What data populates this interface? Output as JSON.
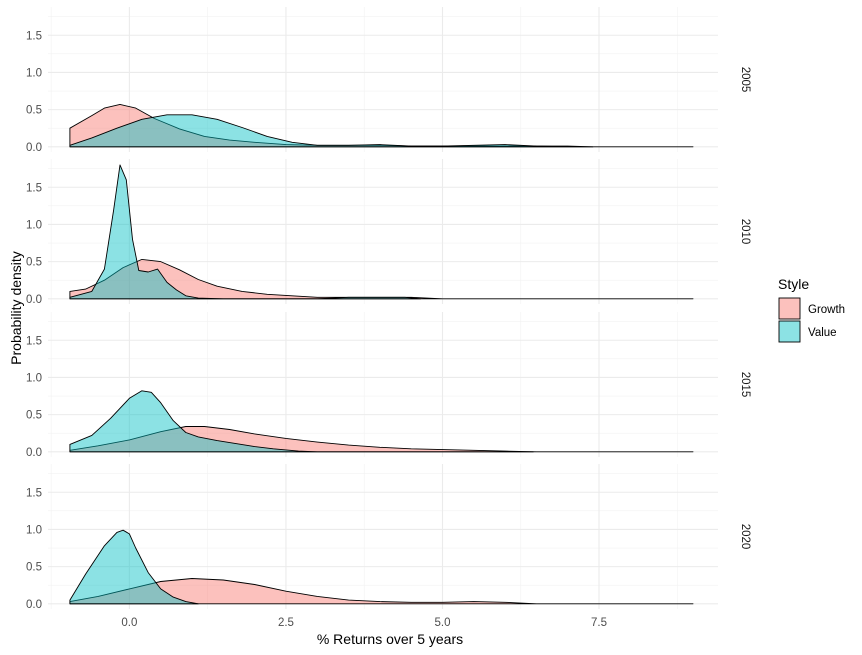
{
  "chart_data": {
    "type": "area",
    "subtype": "faceted density",
    "xlabel": "% Returns over 5 years",
    "ylabel": "Probability density",
    "xlim": [
      -1.3,
      9.4
    ],
    "ylim": [
      -0.07,
      1.88
    ],
    "x_ticks": [
      0.0,
      2.5,
      5.0,
      7.5
    ],
    "x_tick_labels": [
      "0.0",
      "2.5",
      "5.0",
      "7.5"
    ],
    "y_ticks": [
      0.0,
      0.5,
      1.0,
      1.5
    ],
    "y_tick_labels": [
      "0.0",
      "0.5",
      "1.0",
      "1.5"
    ],
    "grid": true,
    "legend": {
      "title": "Style",
      "position": "right",
      "entries": [
        {
          "name": "Growth",
          "color": "#F8766D"
        },
        {
          "name": "Value",
          "color": "#00BFC4"
        }
      ]
    },
    "fill_opacity": 0.45,
    "panels": [
      {
        "label": "2005",
        "series": [
          {
            "name": "Growth",
            "x": [
              -0.95,
              -0.6,
              -0.4,
              -0.15,
              0.1,
              0.4,
              0.8,
              1.2,
              1.6,
              2.0,
              2.5,
              3.0,
              3.5,
              4.0,
              4.5,
              5.0,
              5.5,
              6.0,
              6.5,
              7.0,
              7.4
            ],
            "y": [
              0.25,
              0.42,
              0.52,
              0.57,
              0.52,
              0.38,
              0.24,
              0.14,
              0.09,
              0.06,
              0.03,
              0.02,
              0.02,
              0.02,
              0.01,
              0.01,
              0.01,
              0.01,
              0.01,
              0.01,
              0.0
            ]
          },
          {
            "name": "Value",
            "x": [
              -0.95,
              -0.6,
              -0.2,
              0.2,
              0.6,
              1.0,
              1.4,
              1.8,
              2.2,
              2.6,
              3.0,
              3.5,
              4.0,
              4.5,
              5.0,
              5.5,
              6.0,
              6.5,
              7.0,
              7.5,
              8.0,
              8.5,
              9.0
            ],
            "y": [
              0.02,
              0.12,
              0.25,
              0.37,
              0.43,
              0.43,
              0.37,
              0.26,
              0.14,
              0.06,
              0.02,
              0.02,
              0.03,
              0.01,
              0.01,
              0.02,
              0.03,
              0.01,
              0.0,
              0.0,
              0.0,
              0.0,
              0.0
            ]
          }
        ]
      },
      {
        "label": "2010",
        "series": [
          {
            "name": "Growth",
            "x": [
              -0.95,
              -0.7,
              -0.4,
              -0.1,
              0.2,
              0.5,
              0.8,
              1.1,
              1.4,
              1.8,
              2.2,
              2.6,
              3.0,
              3.5,
              4.0,
              4.5,
              5.0,
              5.5,
              6.0,
              6.5,
              7.0,
              7.5,
              8.0,
              8.5,
              9.0
            ],
            "y": [
              0.1,
              0.13,
              0.25,
              0.42,
              0.53,
              0.5,
              0.39,
              0.26,
              0.17,
              0.1,
              0.06,
              0.04,
              0.02,
              0.02,
              0.02,
              0.02,
              0.0,
              0.0,
              0.0,
              0.0,
              0.0,
              0.0,
              0.0,
              0.0,
              0.0
            ]
          },
          {
            "name": "Value",
            "x": [
              -0.95,
              -0.6,
              -0.4,
              -0.25,
              -0.15,
              -0.05,
              0.05,
              0.15,
              0.3,
              0.45,
              0.6,
              0.75,
              0.9,
              1.1,
              1.5,
              2.0,
              2.5,
              3.0,
              3.5,
              4.0,
              4.4,
              4.65
            ],
            "y": [
              0.02,
              0.1,
              0.4,
              1.2,
              1.8,
              1.6,
              0.8,
              0.38,
              0.36,
              0.4,
              0.22,
              0.12,
              0.04,
              0.01,
              0.0,
              0.0,
              0.0,
              0.0,
              0.02,
              0.02,
              0.02,
              0.0
            ]
          }
        ]
      },
      {
        "label": "2015",
        "series": [
          {
            "name": "Growth",
            "x": [
              -0.95,
              -0.5,
              0.0,
              0.5,
              0.9,
              1.2,
              1.6,
              2.0,
              2.5,
              3.0,
              3.5,
              4.0,
              4.5,
              5.0,
              5.5,
              6.0,
              6.5,
              7.0,
              7.5,
              8.0,
              8.5,
              9.0
            ],
            "y": [
              0.02,
              0.08,
              0.16,
              0.27,
              0.34,
              0.34,
              0.3,
              0.24,
              0.18,
              0.13,
              0.09,
              0.06,
              0.04,
              0.03,
              0.02,
              0.01,
              0.0,
              0.0,
              0.0,
              0.0,
              0.0,
              0.0
            ]
          },
          {
            "name": "Value",
            "x": [
              -0.95,
              -0.6,
              -0.3,
              0.0,
              0.2,
              0.35,
              0.5,
              0.7,
              0.9,
              1.1,
              1.4,
              1.7,
              2.0,
              2.3,
              2.7,
              3.0,
              3.5,
              4.0,
              4.5,
              5.0,
              5.5,
              6.0,
              6.45
            ],
            "y": [
              0.1,
              0.22,
              0.45,
              0.72,
              0.82,
              0.8,
              0.66,
              0.42,
              0.26,
              0.2,
              0.15,
              0.11,
              0.07,
              0.04,
              0.01,
              0.0,
              0.0,
              0.0,
              0.0,
              0.0,
              0.0,
              0.0,
              0.0
            ]
          }
        ]
      },
      {
        "label": "2020",
        "series": [
          {
            "name": "Growth",
            "x": [
              -0.95,
              -0.5,
              0.0,
              0.5,
              1.0,
              1.5,
              2.0,
              2.5,
              3.0,
              3.5,
              4.0,
              4.5,
              5.0,
              5.5,
              6.0,
              6.5,
              7.0,
              7.5,
              8.0,
              8.5,
              9.0
            ],
            "y": [
              0.03,
              0.1,
              0.2,
              0.3,
              0.34,
              0.32,
              0.26,
              0.17,
              0.1,
              0.05,
              0.03,
              0.02,
              0.02,
              0.03,
              0.02,
              0.0,
              0.0,
              0.0,
              0.0,
              0.0,
              0.0
            ]
          },
          {
            "name": "Value",
            "x": [
              -0.95,
              -0.7,
              -0.4,
              -0.2,
              -0.1,
              0.0,
              0.1,
              0.3,
              0.5,
              0.7,
              0.9,
              1.1
            ],
            "y": [
              0.05,
              0.4,
              0.78,
              0.96,
              0.99,
              0.94,
              0.75,
              0.42,
              0.2,
              0.09,
              0.03,
              0.0
            ]
          }
        ]
      }
    ]
  }
}
